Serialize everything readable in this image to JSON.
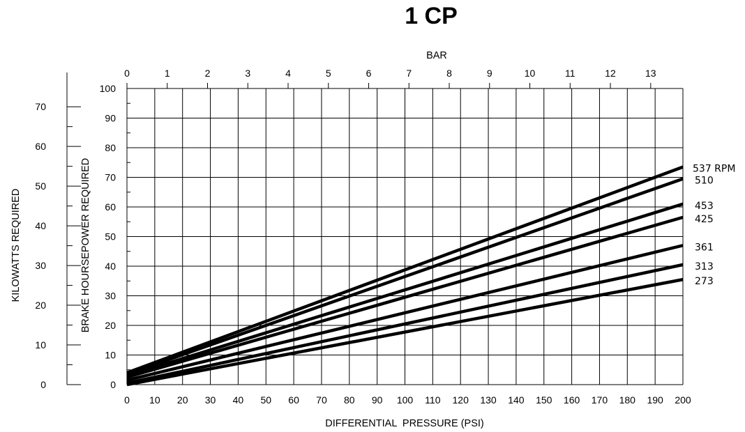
{
  "chart_data": {
    "type": "line",
    "title": "1 CP",
    "xlabel": "DIFFERENTIAL  PRESSURE (PSI)",
    "ylabel": "BRAKE HOURSEPOWER REQUIRED",
    "x2label": "BAR",
    "y2label": "KILOWATTS REQUIRED",
    "xlim": [
      0,
      200
    ],
    "ylim": [
      0,
      100
    ],
    "x2lim": [
      0,
      13.8
    ],
    "y2lim": [
      0,
      74.6
    ],
    "x_ticks": [
      "0",
      "10",
      "20",
      "30",
      "40",
      "50",
      "60",
      "70",
      "80",
      "90",
      "100",
      "110",
      "120",
      "130",
      "140",
      "150",
      "160",
      "170",
      "180",
      "190",
      "200"
    ],
    "y_ticks": [
      "0",
      "10",
      "20",
      "30",
      "40",
      "50",
      "60",
      "70",
      "80",
      "90",
      "100"
    ],
    "x2_ticks": [
      "0",
      "1",
      "2",
      "3",
      "4",
      "5",
      "6",
      "7",
      "8",
      "9",
      "10",
      "11",
      "12",
      "13"
    ],
    "y2_ticks": [
      "0",
      "10",
      "20",
      "30",
      "40",
      "50",
      "60",
      "70"
    ],
    "grid": true,
    "series": [
      {
        "name": "537 RPM",
        "x": [
          0,
          200
        ],
        "y": [
          4,
          73.5
        ]
      },
      {
        "name": "510",
        "x": [
          0,
          200
        ],
        "y": [
          3.5,
          69.5
        ]
      },
      {
        "name": "453",
        "x": [
          0,
          200
        ],
        "y": [
          3,
          61
        ]
      },
      {
        "name": "425",
        "x": [
          0,
          200
        ],
        "y": [
          2.5,
          56.5
        ]
      },
      {
        "name": "361",
        "x": [
          0,
          200
        ],
        "y": [
          1.5,
          47
        ]
      },
      {
        "name": "313",
        "x": [
          0,
          200
        ],
        "y": [
          0.5,
          40.5
        ]
      },
      {
        "name": "273",
        "x": [
          0,
          200
        ],
        "y": [
          0,
          35.5
        ]
      }
    ]
  }
}
